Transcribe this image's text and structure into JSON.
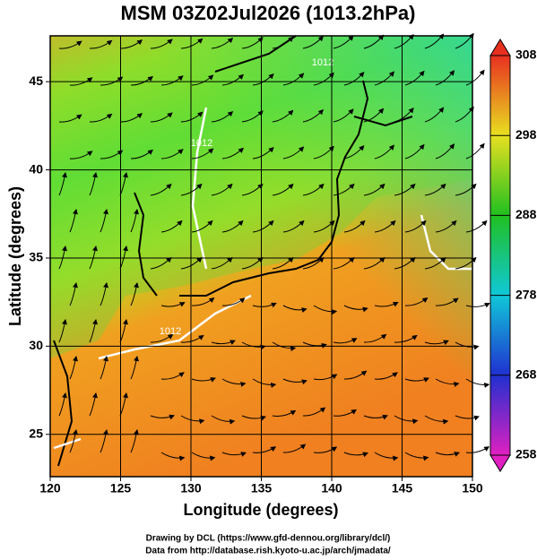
{
  "chart_data": {
    "type": "contour-map",
    "title": "MSM 03Z02Jul2026 (1013.2hPa)",
    "x_label": "Longitude (degrees)",
    "y_label": "Latitude  (degrees)",
    "xlim": [
      120,
      150
    ],
    "xticks": [
      120,
      125,
      130,
      135,
      140,
      145,
      150
    ],
    "ylim": [
      22.6,
      47.6
    ],
    "yticks": [
      25,
      30,
      35,
      40,
      45
    ],
    "grid": true,
    "contour_labels": [
      "1012",
      "1012",
      "1012"
    ],
    "colorbar": {
      "lim": [
        258,
        308
      ],
      "ticks": [
        258,
        268,
        278,
        288,
        298,
        308
      ],
      "colors": [
        "#e020c0",
        "#2030d0",
        "#10c8d8",
        "#20c020",
        "#e8e020",
        "#e83020"
      ]
    },
    "credits": [
      "Drawing by DCL (https://www.gfd-dennou.org/library/dcl/)",
      "Data from http://database.rish.kyoto-u.ac.jp/arch/jmadata/"
    ]
  }
}
